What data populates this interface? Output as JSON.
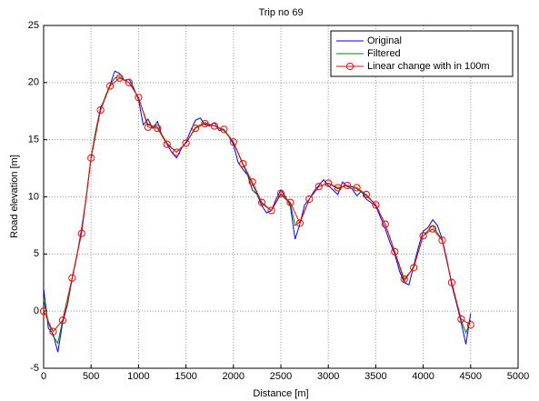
{
  "chart_data": {
    "type": "line",
    "title": "Trip no 69",
    "xlabel": "Distance [m]",
    "ylabel": "Road elevation [m]",
    "xlim": [
      0,
      5000
    ],
    "ylim": [
      -5,
      25
    ],
    "xticks": [
      0,
      500,
      1000,
      1500,
      2000,
      2500,
      3000,
      3500,
      4000,
      4500,
      5000
    ],
    "yticks": [
      -5,
      0,
      5,
      10,
      15,
      20,
      25
    ],
    "grid": true,
    "legend": "upper right",
    "series": [
      {
        "name": "Original",
        "color": "#0000ff",
        "marker": "none",
        "x": [
          0,
          50,
          100,
          150,
          200,
          250,
          300,
          350,
          400,
          450,
          500,
          550,
          600,
          650,
          700,
          750,
          800,
          850,
          900,
          950,
          1000,
          1050,
          1100,
          1150,
          1200,
          1250,
          1300,
          1350,
          1400,
          1450,
          1500,
          1550,
          1600,
          1650,
          1700,
          1750,
          1800,
          1850,
          1900,
          1950,
          2000,
          2050,
          2100,
          2150,
          2200,
          2250,
          2300,
          2350,
          2400,
          2450,
          2500,
          2550,
          2600,
          2650,
          2700,
          2750,
          2800,
          2850,
          2900,
          2950,
          3000,
          3050,
          3100,
          3150,
          3200,
          3250,
          3300,
          3350,
          3400,
          3450,
          3500,
          3550,
          3600,
          3650,
          3700,
          3750,
          3800,
          3850,
          3900,
          3950,
          4000,
          4050,
          4100,
          4150,
          4200,
          4250,
          4300,
          4350,
          4400,
          4450,
          4500
        ],
        "values": [
          2.0,
          -1.5,
          -2.0,
          -3.6,
          -1.0,
          0.5,
          2.8,
          4.8,
          7.2,
          10.0,
          13.5,
          15.8,
          17.8,
          18.7,
          19.8,
          21.0,
          20.8,
          20.2,
          20.3,
          19.5,
          18.5,
          16.3,
          16.8,
          16.0,
          16.6,
          15.3,
          14.6,
          13.9,
          13.4,
          14.2,
          14.8,
          15.8,
          16.7,
          16.9,
          16.3,
          16.2,
          16.5,
          15.8,
          15.9,
          15.3,
          14.6,
          13.0,
          12.4,
          11.9,
          10.6,
          10.2,
          9.2,
          8.6,
          8.8,
          9.8,
          10.6,
          10.0,
          9.2,
          6.3,
          7.6,
          9.3,
          9.8,
          10.5,
          11.0,
          11.5,
          11.0,
          10.6,
          10.2,
          11.3,
          10.9,
          10.7,
          10.1,
          10.5,
          9.8,
          9.5,
          9.2,
          8.2,
          7.2,
          6.0,
          5.0,
          3.5,
          2.5,
          2.3,
          4.0,
          5.6,
          7.0,
          7.3,
          8.0,
          7.5,
          6.3,
          4.5,
          2.3,
          0.7,
          -1.0,
          -2.9,
          -0.2
        ]
      },
      {
        "name": "Filtered",
        "color": "#008000",
        "marker": "none",
        "x": [
          0,
          50,
          100,
          150,
          200,
          250,
          300,
          350,
          400,
          450,
          500,
          550,
          600,
          650,
          700,
          750,
          800,
          850,
          900,
          950,
          1000,
          1100,
          1200,
          1300,
          1400,
          1500,
          1600,
          1700,
          1800,
          1900,
          2000,
          2100,
          2200,
          2300,
          2400,
          2500,
          2600,
          2650,
          2700,
          2800,
          2900,
          3000,
          3100,
          3200,
          3300,
          3400,
          3500,
          3600,
          3700,
          3800,
          3900,
          4000,
          4100,
          4200,
          4300,
          4400,
          4450,
          4500
        ],
        "values": [
          1.0,
          -1.0,
          -2.2,
          -2.8,
          -0.8,
          0.6,
          2.9,
          4.9,
          6.9,
          10.0,
          13.4,
          15.8,
          17.6,
          18.8,
          19.8,
          20.4,
          20.5,
          20.2,
          20.0,
          19.4,
          18.6,
          16.3,
          16.1,
          14.7,
          13.9,
          14.7,
          16.1,
          16.5,
          16.2,
          15.8,
          14.8,
          12.8,
          11.1,
          9.4,
          8.8,
          10.2,
          9.4,
          7.5,
          7.8,
          9.8,
          10.9,
          11.2,
          10.7,
          11.0,
          10.7,
          10.1,
          9.3,
          7.6,
          5.2,
          2.6,
          3.9,
          6.6,
          7.5,
          6.2,
          2.5,
          -0.8,
          -1.9,
          -0.8
        ]
      },
      {
        "name": "Linear change with in 100m",
        "color": "#ff0000",
        "marker": "circle",
        "x": [
          0,
          100,
          200,
          300,
          400,
          500,
          600,
          700,
          800,
          900,
          1000,
          1100,
          1200,
          1300,
          1400,
          1500,
          1600,
          1700,
          1800,
          1900,
          2000,
          2100,
          2200,
          2300,
          2400,
          2500,
          2600,
          2700,
          2800,
          2900,
          3000,
          3100,
          3200,
          3300,
          3400,
          3500,
          3600,
          3700,
          3800,
          3900,
          4000,
          4100,
          4200,
          4300,
          4400,
          4500
        ],
        "values": [
          0.0,
          -1.8,
          -0.8,
          2.9,
          6.8,
          13.4,
          17.6,
          19.7,
          20.4,
          20.0,
          18.7,
          16.1,
          16.0,
          14.6,
          13.9,
          14.7,
          16.0,
          16.4,
          16.2,
          15.9,
          14.8,
          12.9,
          11.3,
          9.5,
          8.8,
          10.3,
          9.5,
          7.7,
          9.8,
          10.9,
          11.2,
          10.8,
          11.0,
          10.8,
          10.2,
          9.3,
          7.6,
          5.2,
          2.8,
          3.8,
          6.6,
          7.2,
          6.2,
          2.5,
          -0.7,
          -1.2
        ]
      }
    ]
  }
}
